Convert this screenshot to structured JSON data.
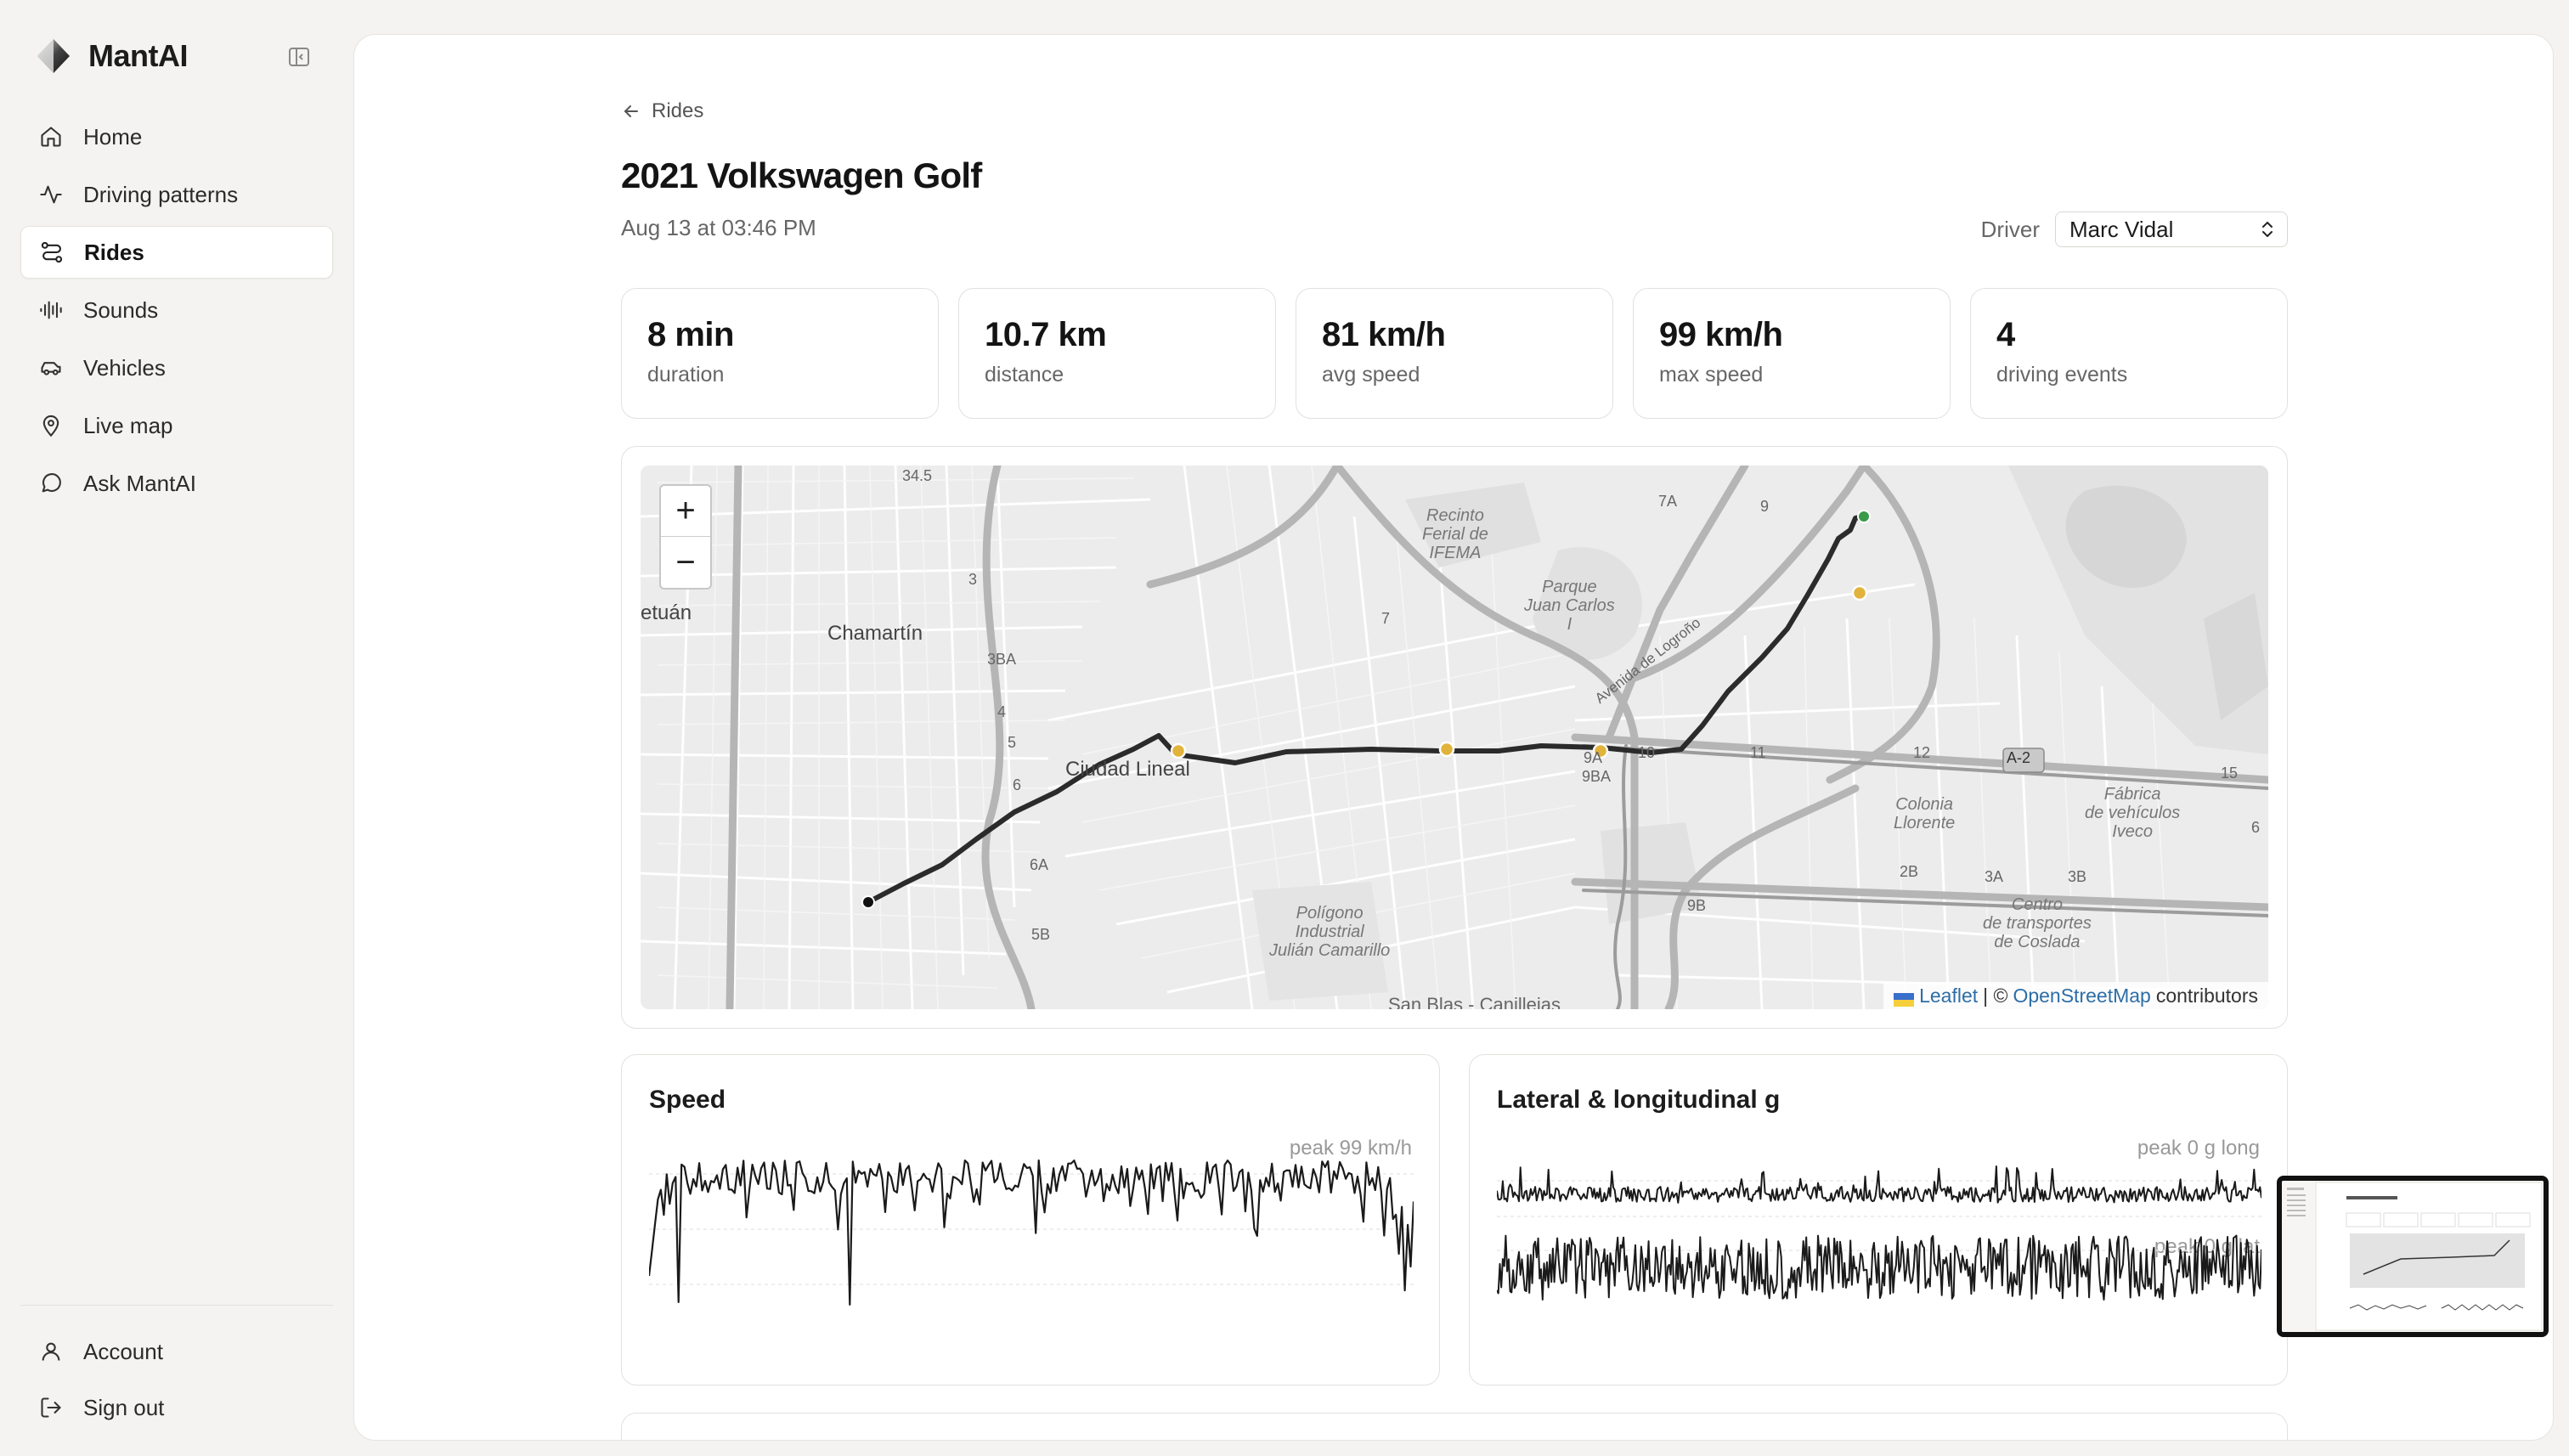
{
  "app": {
    "name": "MantAI"
  },
  "sidebar": {
    "items": [
      {
        "label": "Home",
        "icon": "home-icon"
      },
      {
        "label": "Driving patterns",
        "icon": "activity-icon"
      },
      {
        "label": "Rides",
        "icon": "route-icon",
        "active": true
      },
      {
        "label": "Sounds",
        "icon": "audio-waveform-icon"
      },
      {
        "label": "Vehicles",
        "icon": "car-icon"
      },
      {
        "label": "Live map",
        "icon": "map-pin-icon"
      },
      {
        "label": "Ask MantAI",
        "icon": "chat-bubble-icon"
      }
    ],
    "bottom": [
      {
        "label": "Account",
        "icon": "user-icon"
      },
      {
        "label": "Sign out",
        "icon": "sign-out-icon"
      }
    ]
  },
  "breadcrumb": {
    "back_label": "Rides"
  },
  "ride": {
    "title": "2021 Volkswagen Golf",
    "subtitle": "Aug 13 at 03:46 PM",
    "driver_label": "Driver",
    "driver_value": "Marc Vidal"
  },
  "stats": [
    {
      "value": "8 min",
      "label": "duration"
    },
    {
      "value": "10.7 km",
      "label": "distance"
    },
    {
      "value": "81 km/h",
      "label": "avg speed"
    },
    {
      "value": "99 km/h",
      "label": "max speed"
    },
    {
      "value": "4",
      "label": "driving events"
    }
  ],
  "map": {
    "zoom_in": "+",
    "zoom_out": "−",
    "attribution": {
      "leaflet": "Leaflet",
      "sep": "| ©",
      "osm": "OpenStreetMap",
      "suffix": "contributors"
    },
    "labels": {
      "tetuan": "etuán",
      "chamartin": "Chamartín",
      "ciudad_lineal": "Ciudad Lineal",
      "recinto_1": "Recinto",
      "recinto_2": "Ferial de",
      "recinto_3": "IFEMA",
      "parque_1": "Parque",
      "parque_2": "Juan Carlos",
      "parque_3": "I",
      "avenida": "Avenida de Logroño",
      "colonia_1": "Colonia",
      "colonia_2": "Llorente",
      "fabrica_1": "Fábrica",
      "fabrica_2": "de vehículos",
      "fabrica_3": "Iveco",
      "centro_1": "Centro",
      "centro_2": "de transportes",
      "centro_3": "de Coslada",
      "poligono_1": "Polígono",
      "poligono_2": "Industrial",
      "poligono_3": "Julián Camarillo",
      "san_blas": "San Blas - Canillejas",
      "a2": "A-2",
      "r345": "34.5",
      "r3": "3",
      "r3ba": "3BA",
      "r4": "4",
      "r5": "5",
      "r6": "6",
      "r6a": "6A",
      "r5b": "5B",
      "r7": "7",
      "r7a": "7A",
      "r9": "9",
      "r9a": "9A",
      "r9ba": "9BA",
      "r9b": "9B",
      "r10": "10",
      "r11": "11",
      "r12": "12",
      "r15": "15",
      "r2b": "2B",
      "r3a": "3A",
      "r3b": "3B",
      "r6r": "6"
    }
  },
  "charts": {
    "speed": {
      "title": "Speed",
      "peak": "peak 99 km/h"
    },
    "g": {
      "title": "Lateral & longitudinal g",
      "peak_long": "peak 0 g long",
      "peak_lat": "peak 0 g lat"
    }
  },
  "colors": {
    "route": "#2b2b2b",
    "event": "#e2b33c",
    "start": "#111111",
    "end": "#3a9a4a"
  }
}
